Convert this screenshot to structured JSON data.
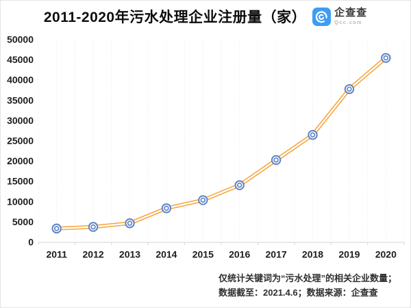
{
  "title": "2011-2020年污水处理企业注册量（家）",
  "logo": {
    "name": "企查查",
    "domain": "Qcc.com",
    "brand_color": "#3d9df3"
  },
  "footnote": {
    "line1": "仅统计关键词为“污水处理”的相关企业数量；",
    "line2": "数据截至：2021.4.6；数据来源：企查查"
  },
  "chart_data": {
    "type": "line",
    "title": "2011-2020年污水处理企业注册量（家）",
    "categories": [
      "2011",
      "2012",
      "2013",
      "2014",
      "2015",
      "2016",
      "2017",
      "2018",
      "2019",
      "2020"
    ],
    "series": [
      {
        "name": "污水处理企业注册量",
        "values": [
          3400,
          3800,
          4700,
          8400,
          10400,
          14100,
          20300,
          26500,
          37800,
          45500
        ]
      }
    ],
    "xlabel": "",
    "ylabel": "",
    "ylim": [
      0,
      50000
    ],
    "ytick_step": 5000,
    "grid": "vertical-dotted",
    "legend": "none",
    "line_color": "#f6a43c",
    "line_core_color": "#ffffff",
    "marker_color": "#5f83c5",
    "axis_color": "#d6d6d6",
    "grid_color": "#e7e7e7"
  }
}
